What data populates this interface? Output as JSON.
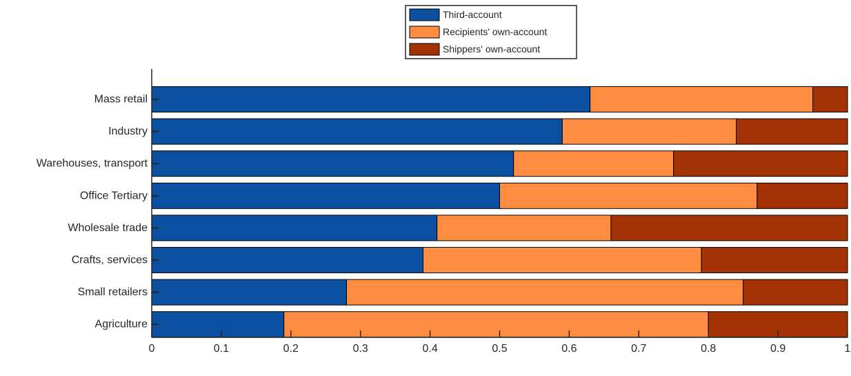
{
  "chart_data": {
    "type": "bar",
    "orientation": "horizontal",
    "stacked": true,
    "categories": [
      "Mass retail",
      "Industry",
      "Warehouses, transport",
      "Office Tertiary",
      "Wholesale trade",
      "Crafts, services",
      "Small retailers",
      "Agriculture"
    ],
    "series": [
      {
        "name": "Third-account",
        "color": "#0b4fa1",
        "values": [
          0.63,
          0.59,
          0.52,
          0.5,
          0.41,
          0.39,
          0.28,
          0.19
        ]
      },
      {
        "name": "Recipients' own-account",
        "color": "#ff8c40",
        "values": [
          0.32,
          0.25,
          0.23,
          0.37,
          0.25,
          0.4,
          0.57,
          0.61
        ]
      },
      {
        "name": "Shippers' own-account",
        "color": "#a33304",
        "values": [
          0.05,
          0.16,
          0.25,
          0.13,
          0.34,
          0.21,
          0.15,
          0.2
        ]
      }
    ],
    "xlim": [
      0,
      1
    ],
    "xticks": [
      0,
      0.1,
      0.2,
      0.3,
      0.4,
      0.5,
      0.6,
      0.7,
      0.8,
      0.9,
      1
    ],
    "xtick_labels": [
      "0",
      "0.1",
      "0.2",
      "0.3",
      "0.4",
      "0.5",
      "0.6",
      "0.7",
      "0.8",
      "0.9",
      "1"
    ],
    "title": "",
    "xlabel": "",
    "ylabel": "",
    "grid": false,
    "legend_position": "top-center"
  }
}
